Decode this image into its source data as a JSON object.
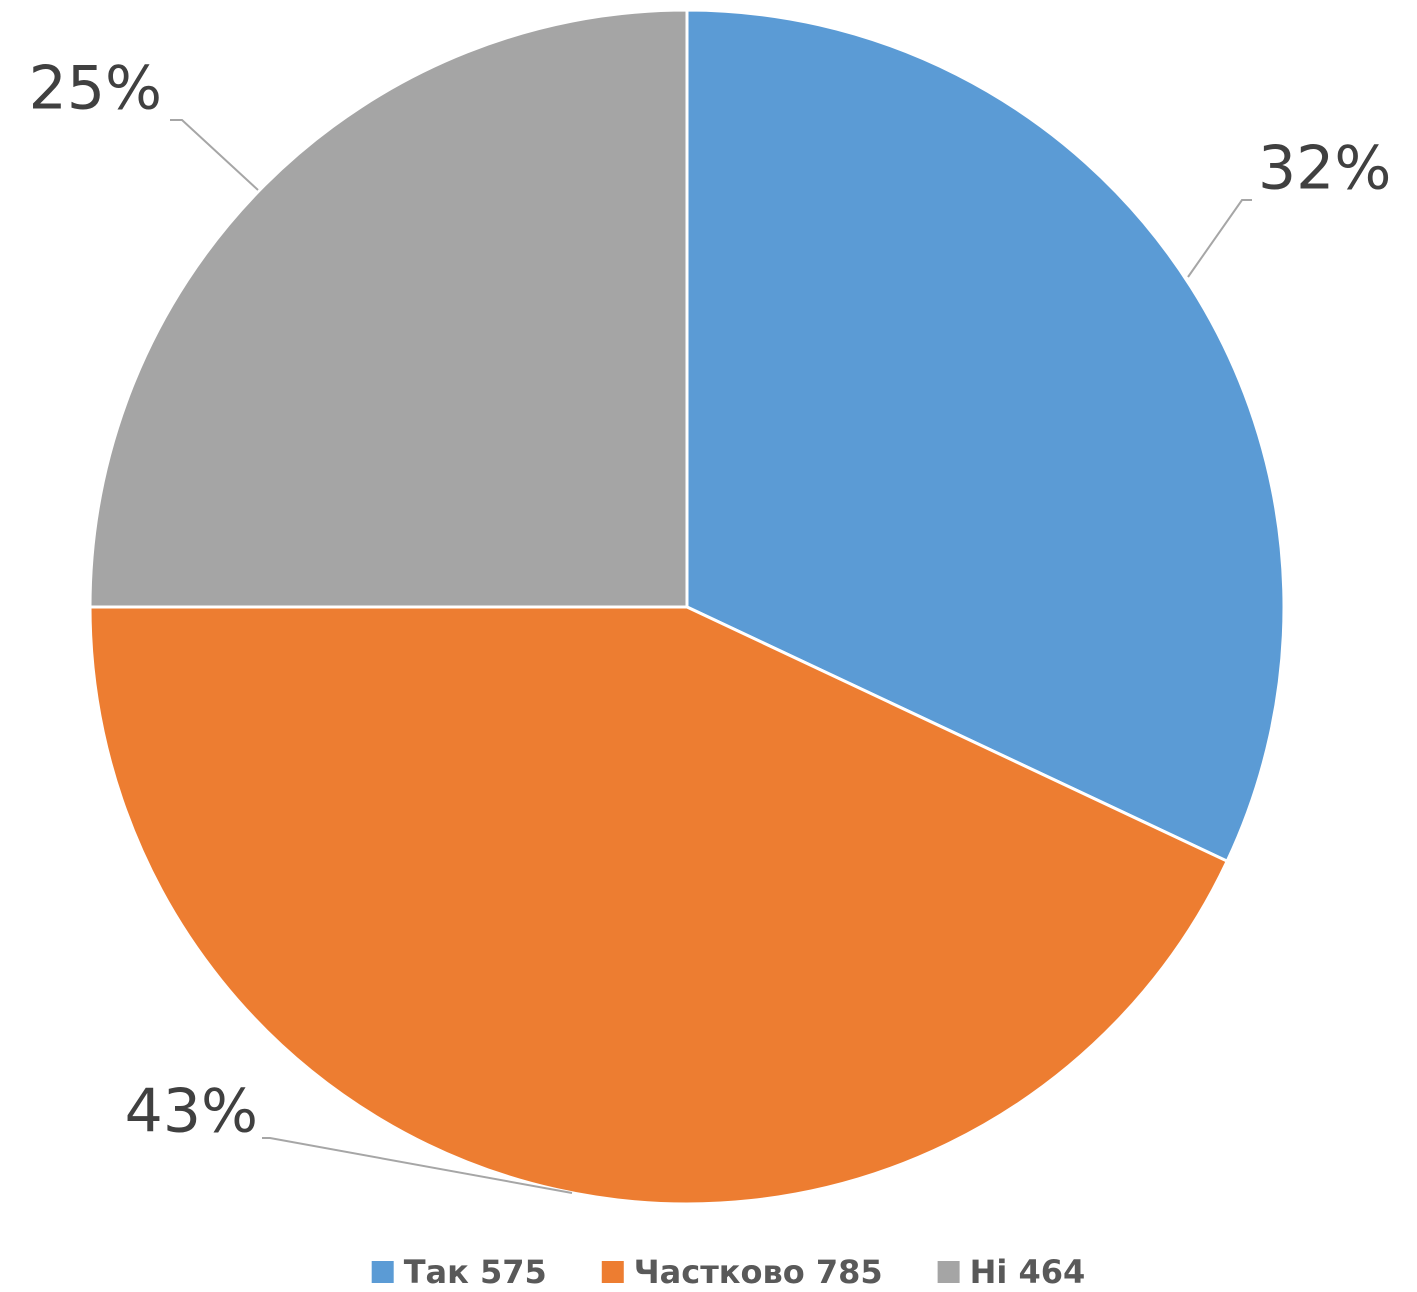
{
  "chart_data": {
    "type": "pie",
    "categories": [
      "Так 575",
      "Частково 785",
      "Ні 464"
    ],
    "values": [
      32,
      43,
      25
    ],
    "value_labels": [
      "32%",
      "43%",
      "25%"
    ],
    "colors": [
      "#5b9bd5",
      "#ed7d31",
      "#a5a5a5"
    ],
    "legend": "bottom"
  }
}
